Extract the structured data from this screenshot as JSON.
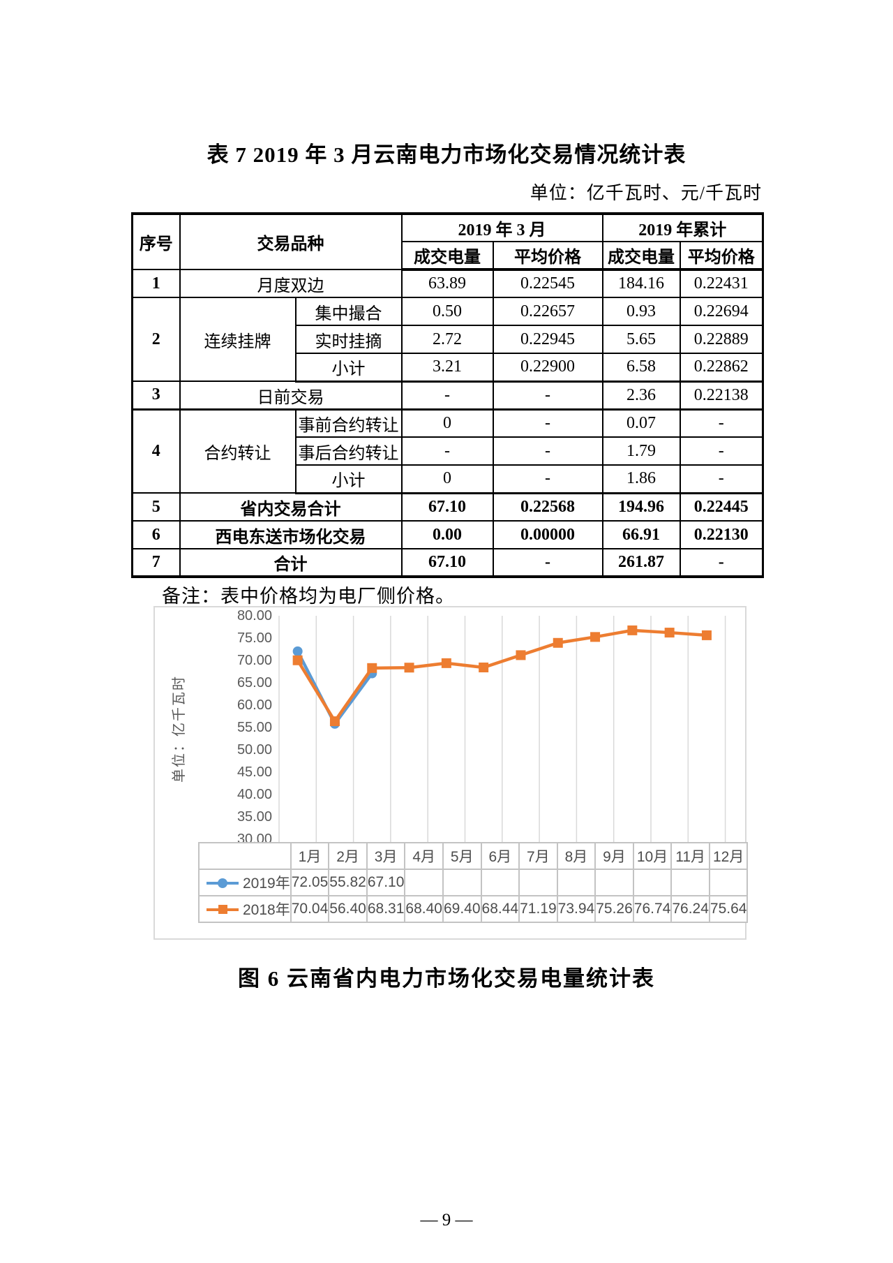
{
  "page": {
    "title": "表 7  2019 年 3 月云南电力市场化交易情况统计表",
    "unit_note": "单位：亿千瓦时、元/千瓦时",
    "table_note": "备注：表中价格均为电厂侧价格。",
    "figure_caption": "图 6  云南省内电力市场化交易电量统计表",
    "page_number": "— 9 —"
  },
  "table": {
    "header": {
      "col_no": "序号",
      "col_type": "交易品种",
      "group_month": "2019 年 3 月",
      "group_cumulative": "2019 年累计",
      "sub_volume": "成交电量",
      "sub_price": "平均价格"
    },
    "rows": [
      {
        "no": "1",
        "label": "月度双边",
        "m_vol": "63.89",
        "m_price": "0.22545",
        "c_vol": "184.16",
        "c_price": "0.22431"
      },
      {
        "no": "2",
        "group": "连续挂牌",
        "items": [
          {
            "label": "集中撮合",
            "m_vol": "0.50",
            "m_price": "0.22657",
            "c_vol": "0.93",
            "c_price": "0.22694"
          },
          {
            "label": "实时挂摘",
            "m_vol": "2.72",
            "m_price": "0.22945",
            "c_vol": "5.65",
            "c_price": "0.22889"
          },
          {
            "label": "小计",
            "m_vol": "3.21",
            "m_price": "0.22900",
            "c_vol": "6.58",
            "c_price": "0.22862"
          }
        ]
      },
      {
        "no": "3",
        "label": "日前交易",
        "m_vol": "-",
        "m_price": "-",
        "c_vol": "2.36",
        "c_price": "0.22138"
      },
      {
        "no": "4",
        "group": "合约转让",
        "items": [
          {
            "label": "事前合约转让",
            "m_vol": "0",
            "m_price": "-",
            "c_vol": "0.07",
            "c_price": "-"
          },
          {
            "label": "事后合约转让",
            "m_vol": "-",
            "m_price": "-",
            "c_vol": "1.79",
            "c_price": "-"
          },
          {
            "label": "小计",
            "m_vol": "0",
            "m_price": "-",
            "c_vol": "1.86",
            "c_price": "-"
          }
        ]
      },
      {
        "no": "5",
        "label": "省内交易合计",
        "m_vol": "67.10",
        "m_price": "0.22568",
        "c_vol": "194.96",
        "c_price": "0.22445"
      },
      {
        "no": "6",
        "label": "西电东送市场化交易",
        "m_vol": "0.00",
        "m_price": "0.00000",
        "c_vol": "66.91",
        "c_price": "0.22130"
      },
      {
        "no": "7",
        "label": "合计",
        "m_vol": "67.10",
        "m_price": "-",
        "c_vol": "261.87",
        "c_price": "-"
      }
    ]
  },
  "chart_data": {
    "type": "line",
    "title": "",
    "xlabel": "",
    "ylabel": "单位：亿千瓦时",
    "categories": [
      "1月",
      "2月",
      "3月",
      "4月",
      "5月",
      "6月",
      "7月",
      "8月",
      "9月",
      "10月",
      "11月",
      "12月"
    ],
    "series": [
      {
        "name": "2019年",
        "color": "#5B9BD5",
        "marker": "circle",
        "values": [
          72.05,
          55.82,
          67.1
        ]
      },
      {
        "name": "2018年",
        "color": "#ED7D31",
        "marker": "square",
        "values": [
          70.04,
          56.4,
          68.31,
          68.4,
          69.4,
          68.44,
          71.19,
          73.94,
          75.26,
          76.74,
          76.24,
          75.64
        ]
      }
    ],
    "ylim": [
      30,
      80
    ],
    "ytick_step": 5,
    "ytick_labels": [
      "80.00",
      "75.00",
      "70.00",
      "65.00",
      "60.00",
      "55.00",
      "50.00",
      "45.00",
      "40.00",
      "35.00",
      "30.00"
    ],
    "grid": "vertical-only",
    "legend_position": "bottom-data-table",
    "gridline_color": "#d9d9d9"
  }
}
